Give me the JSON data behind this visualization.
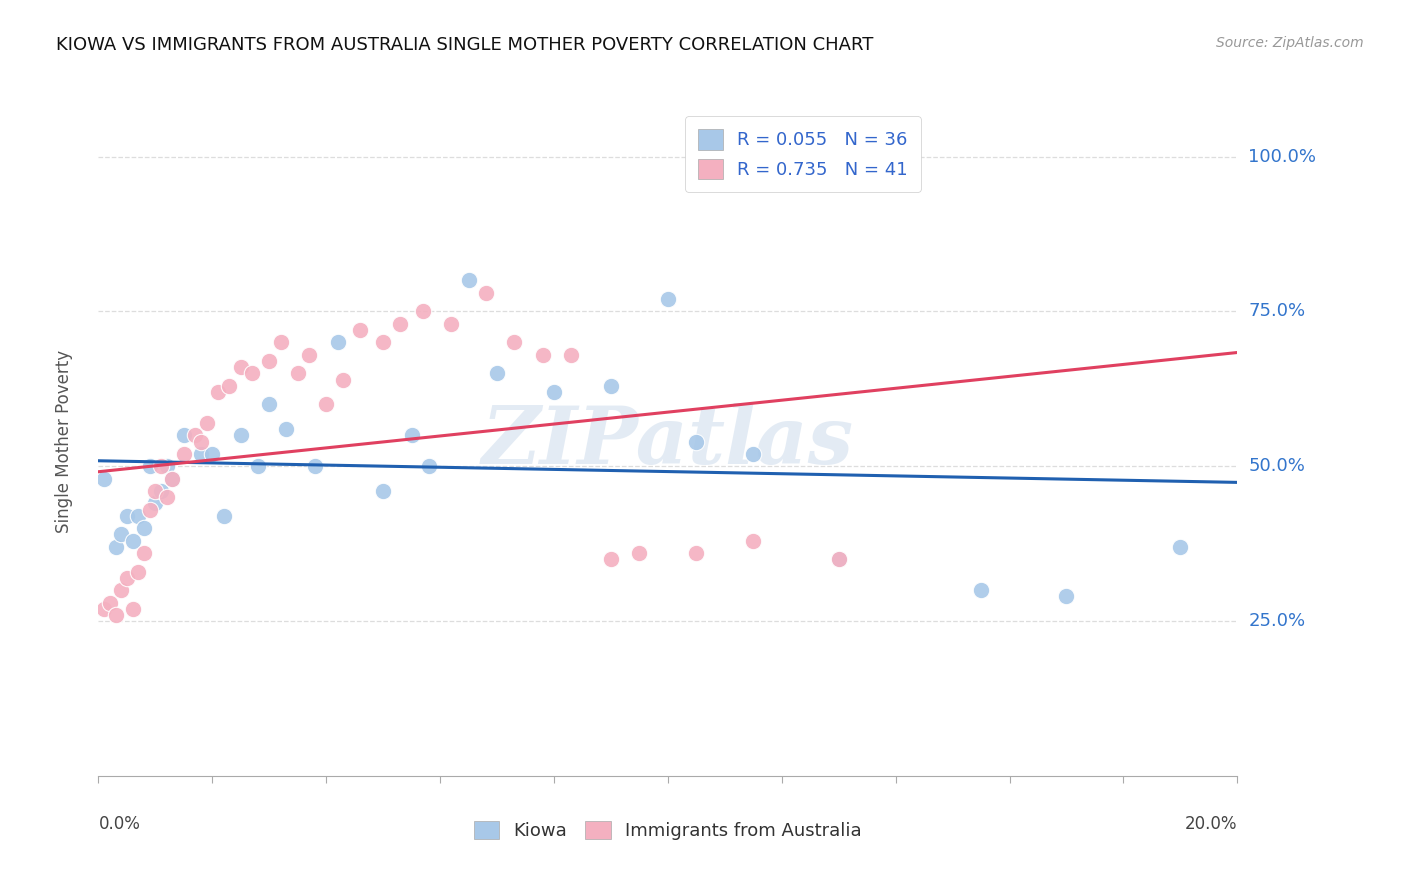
{
  "title": "KIOWA VS IMMIGRANTS FROM AUSTRALIA SINGLE MOTHER POVERTY CORRELATION CHART",
  "source": "Source: ZipAtlas.com",
  "ylabel": "Single Mother Poverty",
  "ytick_labels": [
    "25.0%",
    "50.0%",
    "75.0%",
    "100.0%"
  ],
  "ytick_values": [
    0.25,
    0.5,
    0.75,
    1.0
  ],
  "xlim": [
    0.0,
    0.2
  ],
  "ylim": [
    0.0,
    1.08
  ],
  "kiowa_scatter_color": "#a8c8e8",
  "australia_scatter_color": "#f4b0c0",
  "kiowa_line_color": "#2060b0",
  "australia_line_color": "#e04060",
  "legend_patch_kiowa": "#a8c8e8",
  "legend_patch_aus": "#f4b0c0",
  "legend_label1": "R = 0.055   N = 36",
  "legend_label2": "R = 0.735   N = 41",
  "legend_text_color": "#3366cc",
  "kiowa_x": [
    0.001,
    0.003,
    0.004,
    0.005,
    0.006,
    0.007,
    0.008,
    0.009,
    0.01,
    0.011,
    0.012,
    0.013,
    0.015,
    0.018,
    0.02,
    0.022,
    0.025,
    0.028,
    0.03,
    0.033,
    0.038,
    0.042,
    0.05,
    0.055,
    0.058,
    0.065,
    0.07,
    0.08,
    0.09,
    0.1,
    0.105,
    0.115,
    0.13,
    0.155,
    0.17,
    0.19
  ],
  "kiowa_y": [
    0.48,
    0.37,
    0.39,
    0.42,
    0.38,
    0.42,
    0.4,
    0.5,
    0.44,
    0.46,
    0.5,
    0.48,
    0.55,
    0.52,
    0.52,
    0.42,
    0.55,
    0.5,
    0.6,
    0.56,
    0.5,
    0.7,
    0.46,
    0.55,
    0.5,
    0.8,
    0.65,
    0.62,
    0.63,
    0.77,
    0.54,
    0.52,
    0.35,
    0.3,
    0.29,
    0.37
  ],
  "australia_x": [
    0.001,
    0.002,
    0.003,
    0.004,
    0.005,
    0.006,
    0.007,
    0.008,
    0.009,
    0.01,
    0.011,
    0.012,
    0.013,
    0.015,
    0.017,
    0.018,
    0.019,
    0.021,
    0.023,
    0.025,
    0.027,
    0.03,
    0.032,
    0.035,
    0.037,
    0.04,
    0.043,
    0.046,
    0.05,
    0.053,
    0.057,
    0.062,
    0.068,
    0.073,
    0.078,
    0.083,
    0.09,
    0.095,
    0.105,
    0.115,
    0.13
  ],
  "australia_y": [
    0.27,
    0.28,
    0.26,
    0.3,
    0.32,
    0.27,
    0.33,
    0.36,
    0.43,
    0.46,
    0.5,
    0.45,
    0.48,
    0.52,
    0.55,
    0.54,
    0.57,
    0.62,
    0.63,
    0.66,
    0.65,
    0.67,
    0.7,
    0.65,
    0.68,
    0.6,
    0.64,
    0.72,
    0.7,
    0.73,
    0.75,
    0.73,
    0.78,
    0.7,
    0.68,
    0.68,
    0.35,
    0.36,
    0.36,
    0.38,
    0.35
  ],
  "watermark": "ZIPatlas",
  "background_color": "#ffffff",
  "grid_color": "#dddddd"
}
